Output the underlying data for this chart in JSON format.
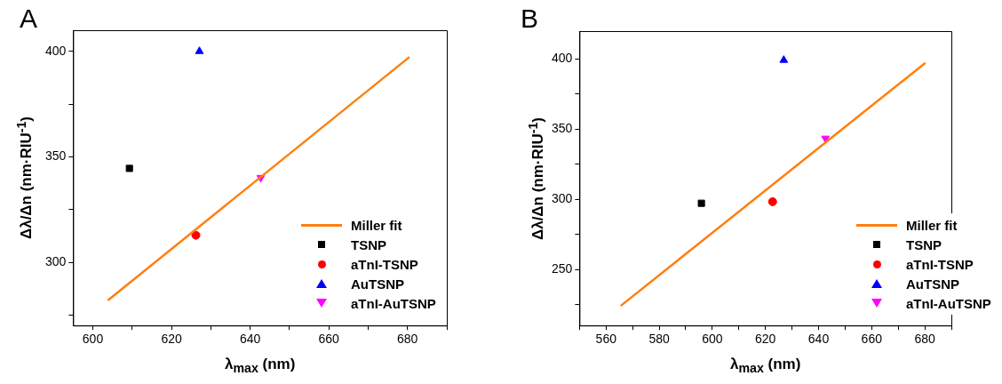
{
  "chart_data": [
    {
      "type": "scatter",
      "title": "A",
      "xlabel": "λ$_{max}$ (nm)",
      "ylabel": "Δλ/Δn (nm·RIU$^{-1}$)",
      "xlim": [
        595,
        690
      ],
      "ylim": [
        270,
        410
      ],
      "xticks": [
        600,
        {
          "value": 610,
          "label": null
        },
        620,
        {
          "value": 630,
          "label": null
        },
        640,
        {
          "value": 650,
          "label": null
        },
        660,
        {
          "value": 670,
          "label": null
        },
        680,
        {
          "value": 690,
          "label": null
        }
      ],
      "yticks": [
        {
          "value": 275,
          "label": null
        },
        300,
        {
          "value": 325,
          "label": null
        },
        350,
        {
          "value": 375,
          "label": null
        },
        400
      ],
      "legend": "bottom right",
      "series": [
        {
          "name": "Miller fit",
          "type": "line",
          "color": "#ff7f0e",
          "marker": "none",
          "x": [
            603.8,
            680.5
          ],
          "values": [
            281.9,
            397.3
          ]
        },
        {
          "name": "TSNP",
          "type": "scatter",
          "color": "#000000",
          "marker": "square",
          "x": [
            609.3
          ],
          "values": [
            344.5
          ]
        },
        {
          "name": "aTnI-TSNP",
          "type": "scatter",
          "color": "#ff0000",
          "marker": "circle",
          "x": [
            626.2
          ],
          "values": [
            312.8
          ]
        },
        {
          "name": "AuTSNP",
          "type": "scatter",
          "color": "#0000ff",
          "marker": "triangle",
          "x": [
            627.1
          ],
          "values": [
            400
          ]
        },
        {
          "name": "aTnI-AuTSNP",
          "type": "scatter",
          "color": "#ff00ff",
          "marker": "triangle-down",
          "x": [
            642.7
          ],
          "values": [
            340.1
          ]
        }
      ]
    },
    {
      "type": "scatter",
      "title": "B",
      "xlabel": "λ$_{max}$ (nm)",
      "ylabel": "Δλ/Δn (nm·RIU$^{-1}$)",
      "xlim": [
        550,
        690
      ],
      "ylim": [
        210,
        420
      ],
      "xticks": [
        {
          "value": 550,
          "label": null
        },
        560,
        {
          "value": 570,
          "label": null
        },
        580,
        {
          "value": 590,
          "label": null
        },
        600,
        {
          "value": 610,
          "label": null
        },
        620,
        {
          "value": 630,
          "label": null
        },
        640,
        {
          "value": 650,
          "label": null
        },
        660,
        {
          "value": 670,
          "label": null
        },
        680,
        {
          "value": 690,
          "label": null
        }
      ],
      "yticks": [
        {
          "value": 225,
          "label": null
        },
        250,
        {
          "value": 275,
          "label": null
        },
        300,
        {
          "value": 325,
          "label": null
        },
        350,
        {
          "value": 375,
          "label": null
        },
        400
      ],
      "legend": "bottom right",
      "series": [
        {
          "name": "Miller fit",
          "type": "line",
          "color": "#ff7f0e",
          "marker": "none",
          "x": [
            565.5,
            680.2
          ],
          "values": [
            224.0,
            397.3
          ]
        },
        {
          "name": "TSNP",
          "type": "scatter",
          "color": "#000000",
          "marker": "square",
          "x": [
            595.9
          ],
          "values": [
            297.2
          ]
        },
        {
          "name": "aTnI-TSNP",
          "type": "scatter",
          "color": "#ff0000",
          "marker": "circle",
          "x": [
            622.7
          ],
          "values": [
            298.3
          ]
        },
        {
          "name": "AuTSNP",
          "type": "scatter",
          "color": "#0000ff",
          "marker": "triangle",
          "x": [
            626.9
          ],
          "values": [
            399.3
          ]
        },
        {
          "name": "aTnI-AuTSNP",
          "type": "scatter",
          "color": "#ff00ff",
          "marker": "triangle-down",
          "x": [
            642.6
          ],
          "values": [
            343.5
          ]
        }
      ]
    }
  ]
}
